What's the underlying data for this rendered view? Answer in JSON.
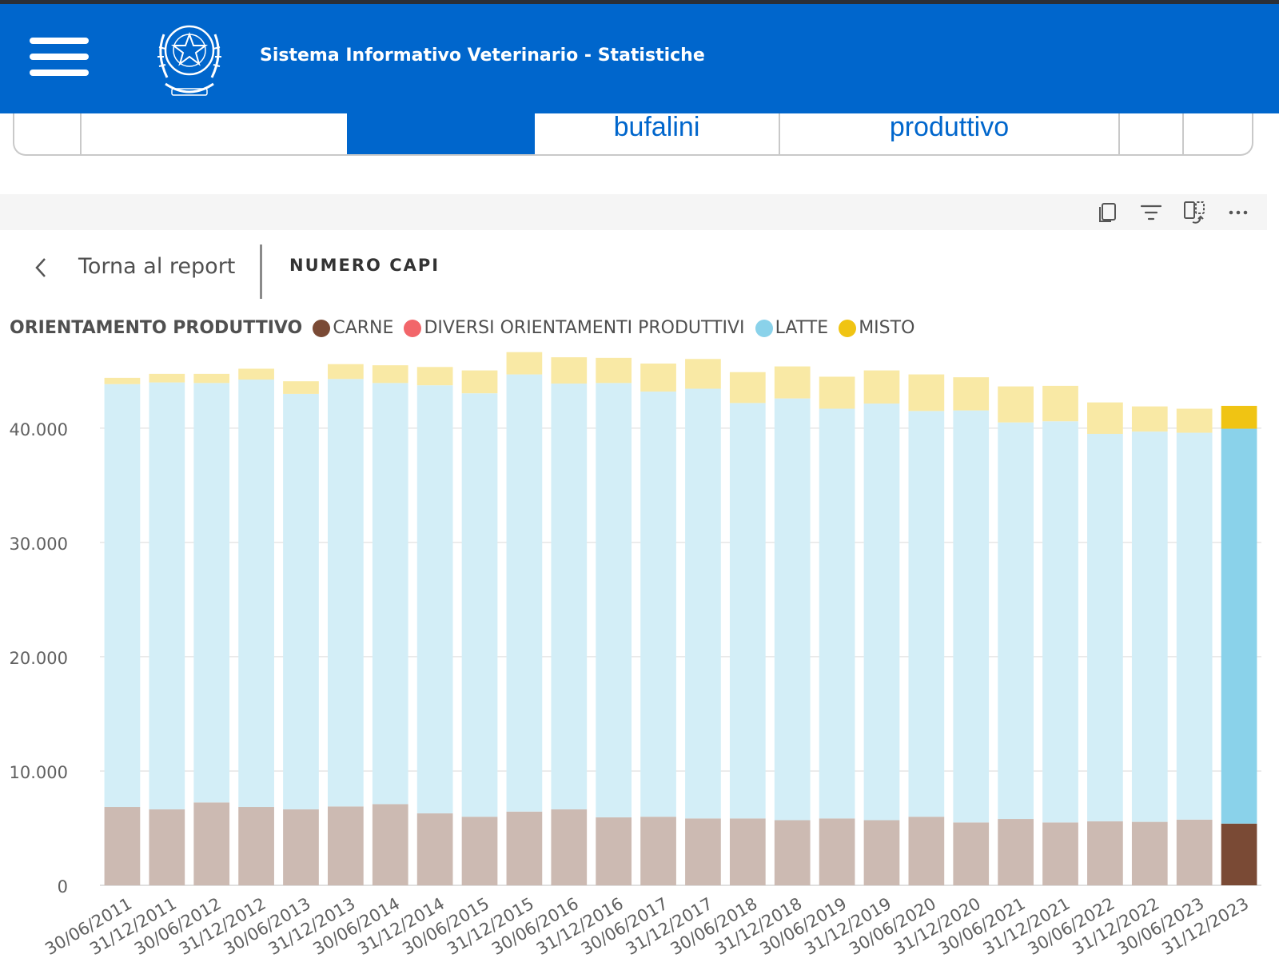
{
  "header": {
    "title": "Sistema Informativo Veterinario - Statistiche"
  },
  "tabs": [
    {
      "label": ""
    },
    {
      "label": ""
    },
    {
      "label": "",
      "active": true
    },
    {
      "label": "bufalini"
    },
    {
      "label": "produttivo"
    },
    {
      "label": ""
    },
    {
      "label": ""
    }
  ],
  "toolbar": {
    "icons": [
      "copy-icon",
      "filter-icon",
      "focus-mode-icon",
      "more-options-icon"
    ]
  },
  "back": {
    "label": "Torna al report"
  },
  "visual": {
    "title": "NUMERO CAPI"
  },
  "legend": {
    "title": "ORIENTAMENTO PRODUTTIVO",
    "items": [
      {
        "label": "CARNE",
        "color": "#7a4a35"
      },
      {
        "label": "DIVERSI ORIENTAMENTI PRODUTTIVI",
        "color": "#f2666a"
      },
      {
        "label": "LATTE",
        "color": "#8ad2ea"
      },
      {
        "label": "MISTO",
        "color": "#f0c413"
      }
    ]
  },
  "chart_data": {
    "type": "bar",
    "stacked": true,
    "categories": [
      "30/06/2011",
      "31/12/2011",
      "30/06/2012",
      "31/12/2012",
      "30/06/2013",
      "31/12/2013",
      "30/06/2014",
      "31/12/2014",
      "30/06/2015",
      "31/12/2015",
      "30/06/2016",
      "31/12/2016",
      "30/06/2017",
      "31/12/2017",
      "30/06/2018",
      "31/12/2018",
      "30/06/2019",
      "31/12/2019",
      "30/06/2020",
      "31/12/2020",
      "30/06/2021",
      "31/12/2021",
      "30/06/2022",
      "31/12/2022",
      "30/06/2023",
      "31/12/2023"
    ],
    "series": [
      {
        "name": "CARNE",
        "color": "#7a4a35",
        "values": [
          6850,
          6650,
          7250,
          6850,
          6650,
          6900,
          7100,
          6300,
          6000,
          6450,
          6650,
          5950,
          6000,
          5850,
          5850,
          5700,
          5850,
          5700,
          6000,
          5500,
          5800,
          5500,
          5600,
          5550,
          5750,
          5400
        ]
      },
      {
        "name": "DIVERSI ORIENTAMENTI PRODUTTIVI",
        "color": "#f2666a",
        "values": [
          0,
          0,
          0,
          0,
          0,
          0,
          0,
          0,
          0,
          0,
          0,
          0,
          0,
          0,
          0,
          0,
          0,
          0,
          0,
          0,
          0,
          0,
          0,
          0,
          0,
          0
        ]
      },
      {
        "name": "LATTE",
        "color": "#8ad2ea",
        "values": [
          37000,
          37350,
          36700,
          37400,
          36350,
          37400,
          36850,
          37450,
          37050,
          38250,
          37250,
          38000,
          37200,
          37600,
          36350,
          36900,
          35850,
          36450,
          35500,
          36050,
          34700,
          35100,
          33900,
          34150,
          33850,
          34550
        ]
      },
      {
        "name": "MISTO",
        "color": "#f0c413",
        "values": [
          550,
          750,
          800,
          950,
          1100,
          1300,
          1550,
          1600,
          2000,
          1950,
          2300,
          2200,
          2450,
          2600,
          2700,
          2800,
          2800,
          2900,
          3200,
          2900,
          3150,
          3100,
          2750,
          2200,
          2100,
          2000
        ]
      }
    ],
    "highlighted_index": 25,
    "ylim": [
      0,
      46000
    ],
    "yticks": [
      0,
      10000,
      20000,
      30000,
      40000
    ],
    "ytick_labels": [
      "0",
      "10.000",
      "20.000",
      "30.000",
      "40.000"
    ],
    "grid": true,
    "legend_position": "top-left"
  }
}
